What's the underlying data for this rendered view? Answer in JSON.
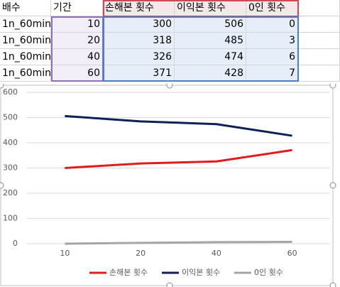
{
  "table": {
    "header": [
      "배수",
      "기간",
      "손해본 횟수",
      "이익본 횟수",
      "0인 횟수"
    ],
    "rows": [
      [
        "1n_60min",
        10,
        300,
        506,
        0
      ],
      [
        "1n_60min",
        20,
        318,
        485,
        3
      ],
      [
        "1n_60min",
        40,
        326,
        474,
        6
      ],
      [
        "1n_60min",
        60,
        371,
        428,
        7
      ]
    ]
  },
  "chart_data": {
    "type": "line",
    "categories": [
      "10",
      "20",
      "40",
      "60"
    ],
    "series": [
      {
        "name": "손해본 횟수",
        "color": "#e01c1c",
        "values": [
          300,
          318,
          326,
          371
        ]
      },
      {
        "name": "이익본 횟수",
        "color": "#0d2158",
        "values": [
          506,
          485,
          474,
          428
        ]
      },
      {
        "name": "0인 횟수",
        "color": "#a5a5a5",
        "values": [
          0,
          3,
          6,
          7
        ]
      }
    ],
    "ylim": [
      0,
      600
    ],
    "yticks": [
      0,
      100,
      200,
      300,
      400,
      500,
      600
    ],
    "grid": true,
    "legend": "bottom"
  }
}
